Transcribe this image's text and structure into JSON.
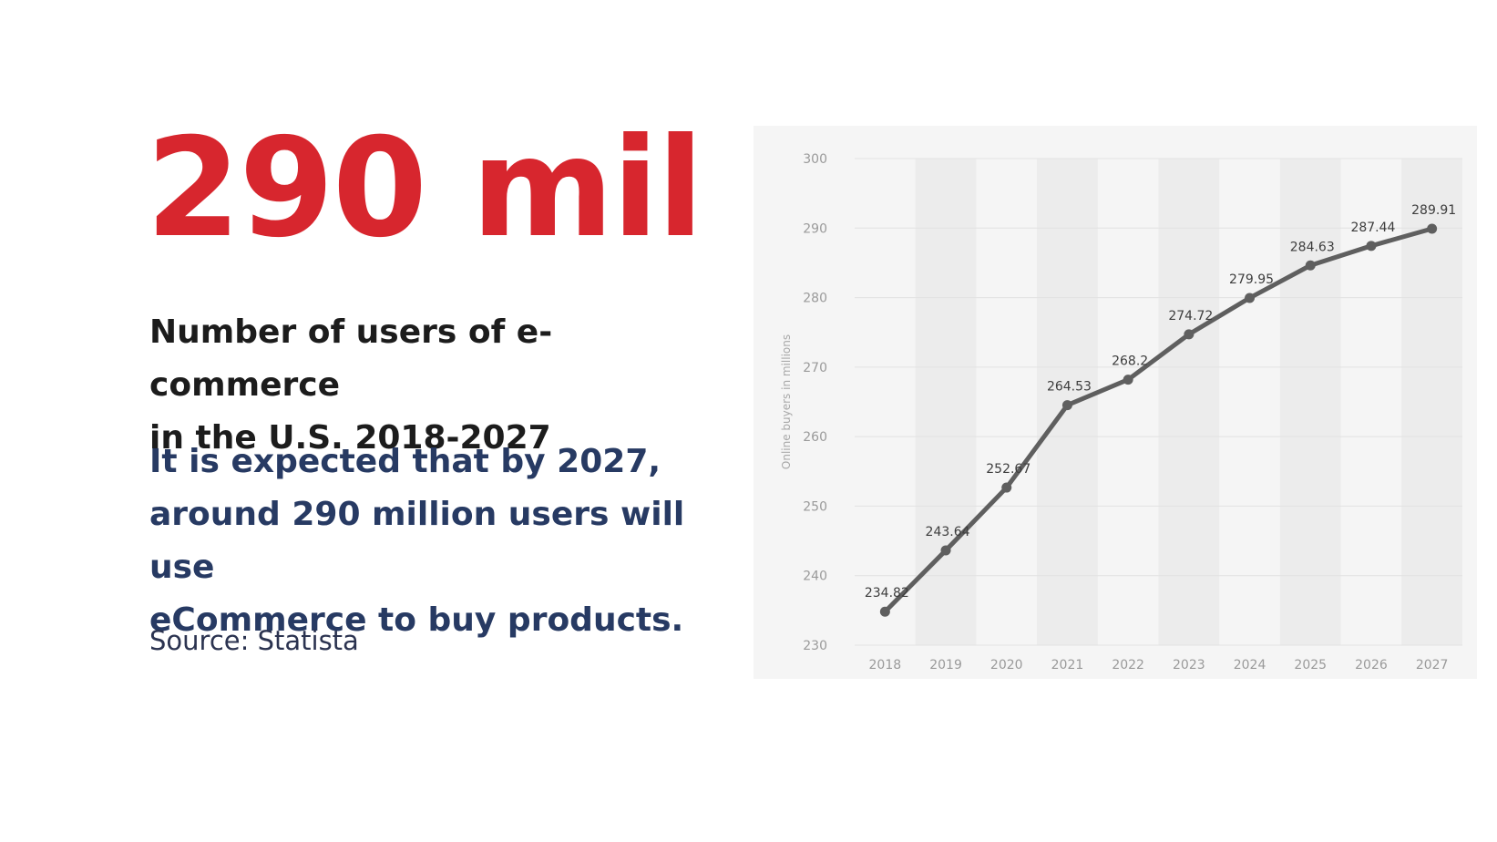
{
  "headline_stat": {
    "text": "290 mil",
    "color": "#d7262e"
  },
  "headline": {
    "lines": [
      "Number of users of e-commerce",
      "in the U.S. 2018-2027"
    ]
  },
  "description": {
    "lines": [
      "It is expected that by 2027,",
      "around 290 million users will use",
      "eCommerce to buy products."
    ],
    "color": "#273a63"
  },
  "source": "Source: Statista",
  "chart_data": {
    "type": "line",
    "categories": [
      "2018",
      "2019",
      "2020",
      "2021",
      "2022",
      "2023",
      "2024",
      "2025",
      "2026",
      "2027"
    ],
    "series": [
      {
        "values": [
          234.82,
          243.64,
          252.67,
          264.53,
          268.2,
          274.72,
          279.95,
          284.63,
          287.44,
          289.91
        ],
        "labels": [
          "234.82",
          "243.64",
          "252.67",
          "264.53",
          "268.2",
          "274.72",
          "279.95",
          "284.63",
          "287.44",
          "289.91"
        ],
        "color": "#5f5f5f"
      }
    ],
    "ylabel": "Online buyers in millions",
    "xlabel": "",
    "ylim": [
      230,
      300
    ],
    "yticks": [
      230,
      240,
      250,
      260,
      270,
      280,
      290,
      300
    ],
    "grid": true,
    "background": "#f5f5f5",
    "band_color": "#ececec",
    "grid_color": "#e2e2e2"
  }
}
